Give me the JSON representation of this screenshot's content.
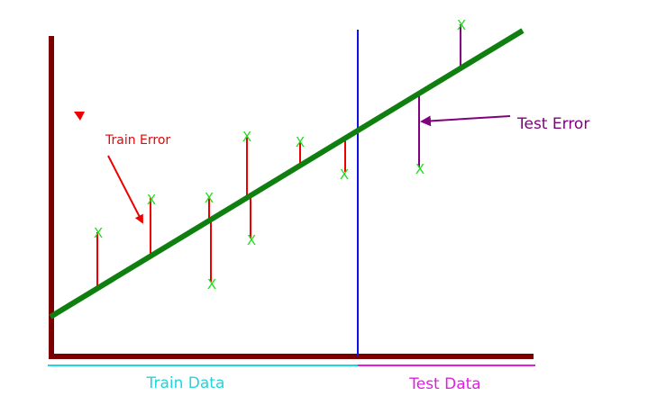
{
  "labels": {
    "train_error": "Train Error",
    "test_error": "Test Error",
    "train_data": "Train Data",
    "test_data": "Test Data",
    "marker": "X"
  },
  "colors": {
    "axes": "#7a0000",
    "fit_line": "#0f7f0f",
    "split_line": "#1010e0",
    "train_error": "#ee0000",
    "test_error": "#800080",
    "point_marker": "#22dd22",
    "train_data": "#1ed6e0",
    "test_data": "#e01ee0"
  },
  "icons": {
    "small_triangle": "red-triangle-icon"
  }
}
